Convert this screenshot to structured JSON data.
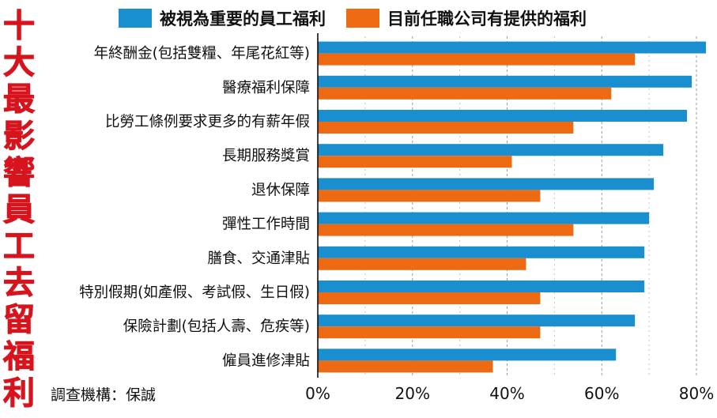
{
  "side_title": [
    "十",
    "大",
    "最",
    "影",
    "響",
    "員",
    "工",
    "去",
    "留",
    "福",
    "利"
  ],
  "source_note": "調查機構：保誠",
  "chart_data": {
    "type": "bar",
    "orientation": "horizontal",
    "title": "十大最影響員工去留福利",
    "categories": [
      "年終酬金(包括雙糧、年尾花紅等)",
      "醫療福利保障",
      "比勞工條例要求更多的有薪年假",
      "長期服務獎賞",
      "退休保障",
      "彈性工作時間",
      "膳食、交通津貼",
      "特別假期(如產假、考試假、生日假)",
      "保險計劃(包括人壽、危疾等)",
      "僱員進修津貼"
    ],
    "series": [
      {
        "name": "被視為重要的員工福利",
        "color": "#1a8fd0",
        "values": [
          82,
          79,
          78,
          73,
          71,
          70,
          69,
          69,
          67,
          63
        ]
      },
      {
        "name": "目前任職公司有提供的福利",
        "color": "#ee6a12",
        "values": [
          67,
          62,
          54,
          41,
          47,
          54,
          44,
          47,
          47,
          37
        ]
      }
    ],
    "xlim": [
      0,
      80
    ],
    "xticks": [
      "0%",
      "20%",
      "40%",
      "60%",
      "80%"
    ],
    "grid": "vertical-dashed",
    "legend_position": "top"
  }
}
